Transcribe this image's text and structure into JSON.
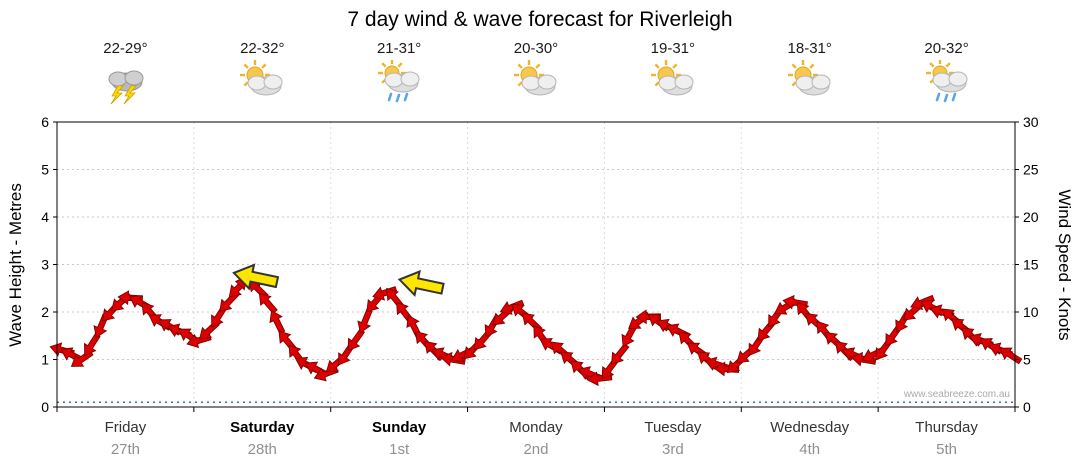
{
  "watermark": "www.seabreeze.com.au",
  "chart_data": {
    "type": "line",
    "title": "7 day wind & wave forecast for Riverleigh",
    "ylabel_left": "Wave Height - Metres",
    "ylabel_right": "Wind Speed - Knots",
    "ylim_left": [
      0,
      6
    ],
    "ylim_right": [
      0,
      30
    ],
    "yticks_left": [
      0,
      1,
      2,
      3,
      4,
      5,
      6
    ],
    "yticks_right": [
      0,
      5,
      10,
      15,
      20,
      25,
      30
    ],
    "grid": "horizontal-dotted",
    "legend": "none",
    "days": [
      {
        "name": "Friday",
        "date": "27th",
        "temp": "22-29°",
        "icon": "storm",
        "bold": false
      },
      {
        "name": "Saturday",
        "date": "28th",
        "temp": "22-32°",
        "icon": "partly-cloudy",
        "bold": true
      },
      {
        "name": "Sunday",
        "date": "1st",
        "temp": "21-31°",
        "icon": "showers",
        "bold": true
      },
      {
        "name": "Monday",
        "date": "2nd",
        "temp": "20-30°",
        "icon": "partly-cloudy",
        "bold": false
      },
      {
        "name": "Tuesday",
        "date": "3rd",
        "temp": "19-31°",
        "icon": "partly-cloudy",
        "bold": false
      },
      {
        "name": "Wednesday",
        "date": "4th",
        "temp": "18-31°",
        "icon": "partly-cloudy",
        "bold": false
      },
      {
        "name": "Thursday",
        "date": "5th",
        "temp": "20-32°",
        "icon": "showers",
        "bold": false
      }
    ],
    "points_per_day": 14,
    "series": [
      {
        "name": "Wind Speed",
        "units": "knots",
        "marker": "red-wind-arrow",
        "color": "#dd0000",
        "outline": "#7d0000",
        "values_knots": [
          6,
          5.5,
          5,
          6.5,
          8.5,
          10,
          11,
          11.5,
          11,
          10,
          9,
          8.5,
          8,
          7.5,
          7,
          8,
          9.5,
          11,
          12.5,
          13,
          12.5,
          11,
          9,
          7,
          5.5,
          4.5,
          4,
          3.5,
          4.5,
          5.5,
          7,
          9,
          11,
          12,
          11.5,
          10,
          8.5,
          7,
          6,
          5.5,
          5,
          5.5,
          6,
          7,
          8.5,
          9.5,
          10.5,
          10,
          9,
          7.5,
          6.5,
          6,
          5,
          4,
          3.5,
          3,
          4,
          5.5,
          7.5,
          9,
          9.5,
          9,
          8.5,
          8,
          7,
          6,
          5,
          4.5,
          4,
          4.5,
          5.5,
          6.5,
          8,
          9.5,
          10.5,
          11,
          10,
          9,
          8,
          7,
          6,
          5.5,
          5,
          5.5,
          6,
          7.5,
          9,
          10,
          11,
          10.5,
          10,
          9.5,
          8.5,
          7.5,
          7,
          6.5,
          6,
          5.5
        ]
      },
      {
        "name": "Wave Height",
        "units": "metres",
        "style": "dotted-line",
        "color": "#3b63c8",
        "constant_m": 0.1
      }
    ],
    "annotations": [
      {
        "type": "yellow-arrow",
        "day_index": 1,
        "frac": 0.45,
        "knots": 13,
        "color": "#ffe600"
      },
      {
        "type": "yellow-arrow",
        "day_index": 2,
        "frac": 0.66,
        "knots": 12.3,
        "color": "#ffe600"
      }
    ]
  }
}
